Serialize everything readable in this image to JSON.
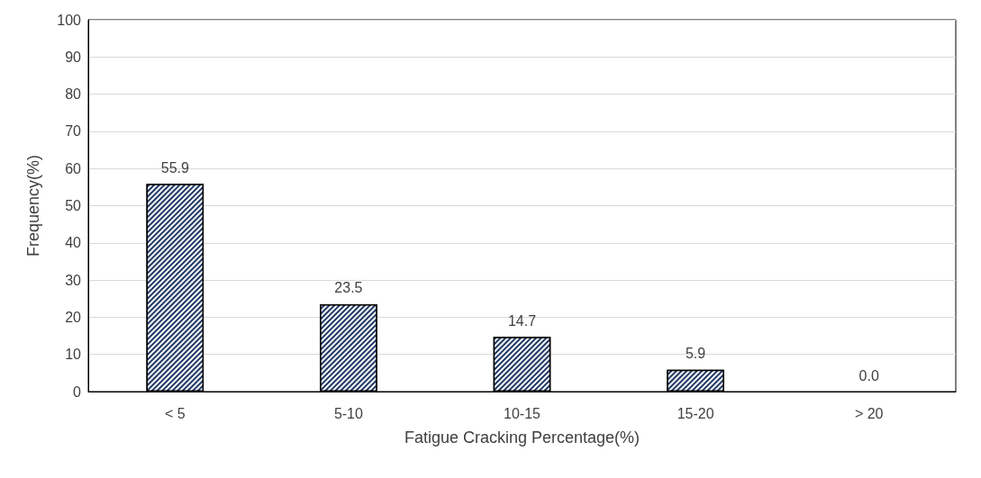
{
  "chart_data": {
    "type": "bar",
    "xlabel": "Fatigue Cracking Percentage(%)",
    "ylabel": "Frequency(%)",
    "categories": [
      "< 5",
      "5-10",
      "10-15",
      "15-20",
      "> 20"
    ],
    "values": [
      55.9,
      23.5,
      14.7,
      5.9,
      0.0
    ],
    "value_labels": [
      "55.9",
      "23.5",
      "14.7",
      "5.9",
      "0.0"
    ],
    "color": "#1f3864",
    "ylim": [
      0,
      100
    ],
    "yticks": [
      0,
      10,
      20,
      30,
      40,
      50,
      60,
      70,
      80,
      90,
      100
    ],
    "grid": "y"
  }
}
